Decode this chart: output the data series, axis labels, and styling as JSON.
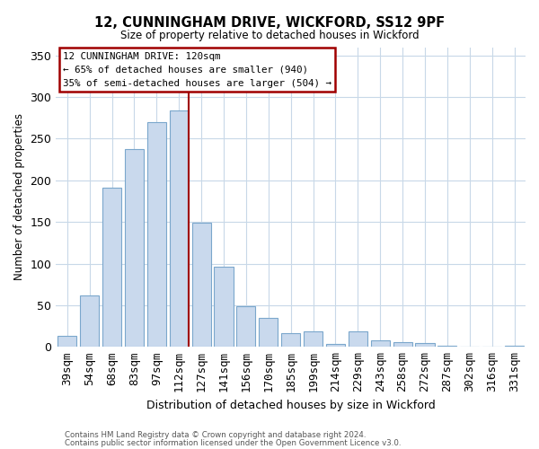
{
  "title": "12, CUNNINGHAM DRIVE, WICKFORD, SS12 9PF",
  "subtitle": "Size of property relative to detached houses in Wickford",
  "xlabel": "Distribution of detached houses by size in Wickford",
  "ylabel": "Number of detached properties",
  "bar_labels": [
    "39sqm",
    "54sqm",
    "68sqm",
    "83sqm",
    "97sqm",
    "112sqm",
    "127sqm",
    "141sqm",
    "156sqm",
    "170sqm",
    "185sqm",
    "199sqm",
    "214sqm",
    "229sqm",
    "243sqm",
    "258sqm",
    "272sqm",
    "287sqm",
    "302sqm",
    "316sqm",
    "331sqm"
  ],
  "bar_values": [
    13,
    62,
    191,
    238,
    270,
    284,
    149,
    96,
    49,
    35,
    17,
    19,
    4,
    19,
    8,
    6,
    5,
    1,
    0,
    0,
    1
  ],
  "bar_color": "#c9d9ed",
  "bar_edge_color": "#7ba7cc",
  "vline_index": 5,
  "vline_color": "#a00000",
  "annotation_title": "12 CUNNINGHAM DRIVE: 120sqm",
  "annotation_line1": "← 65% of detached houses are smaller (940)",
  "annotation_line2": "35% of semi-detached houses are larger (504) →",
  "annotation_box_color": "#ffffff",
  "annotation_box_edge_color": "#a00000",
  "ylim": [
    0,
    360
  ],
  "yticks": [
    0,
    50,
    100,
    150,
    200,
    250,
    300,
    350
  ],
  "footer1": "Contains HM Land Registry data © Crown copyright and database right 2024.",
  "footer2": "Contains public sector information licensed under the Open Government Licence v3.0.",
  "background_color": "#ffffff",
  "grid_color": "#c8d8e8"
}
